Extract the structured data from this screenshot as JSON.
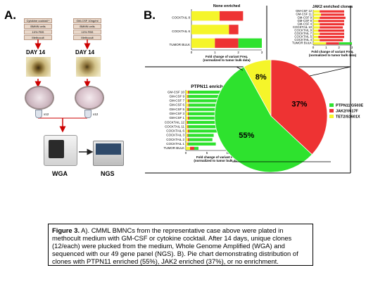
{
  "panel_a": {
    "label": "A.",
    "tube_left_labels": [
      "Cytokine cocktail *",
      "BMMN cells",
      "10% FBS",
      "Methocult"
    ],
    "tube_right_labels": [
      "GM-CSF 10ng/ml",
      "BMMN cells",
      "10% FBS",
      "Methocult"
    ],
    "day_left": "DAY 14",
    "day_right": "DAY 14",
    "x12_left": "x12",
    "x12_right": "x12",
    "wga_label": "WGA",
    "ngs_label": "NGS"
  },
  "panel_b": {
    "label": "B."
  },
  "caption": {
    "bold_part": "Figure 3.",
    "text": " A). CMML BMNCs from the representative case above were plated in methocult medium with GM-CSF or cytokine cocktail. After 14 days, unique clones (12/each) were plucked from the medium, Whole Genome Amplified (WGA) and sequenced with our 49 gene panel (NGS). B). Pie chart demonstrating distribution of clones with PTPN11 enriched (55%), JAK2 enriched (37%), or no enrichment."
  },
  "chart_data": [
    {
      "type": "pie",
      "labels": [
        "PTPN11/G503E",
        "JAK2/V617F",
        "TET2/S1601X"
      ],
      "values": [
        55,
        37,
        8
      ],
      "slice_labels": [
        "55%",
        "37%",
        "8%"
      ],
      "colors": [
        "#2ee22e",
        "#ee3333",
        "#f5f52a"
      ],
      "legend": "right"
    },
    {
      "type": "bar",
      "title": "None enriched",
      "xlabel": "Fold change of variant Freq. (normalized to tumor bulk data)",
      "categories": [
        "COCKTAIL 8",
        "COCKTAIL 6",
        "TUMOR BULK"
      ],
      "series": [
        {
          "name": "TET2/S1601X",
          "values": [
            1.2,
            1.6,
            1.0
          ]
        },
        {
          "name": "JAK2/V617F",
          "values": [
            1.0,
            0.4,
            1.0
          ]
        },
        {
          "name": "PTPN11/G503E",
          "values": [
            0,
            0,
            1.0
          ]
        }
      ],
      "colors": [
        "#f5f52a",
        "#ee3333",
        "#2ee22e"
      ],
      "ticks": [
        "0",
        "1",
        "2",
        "3"
      ],
      "xlim": [
        0,
        3
      ]
    },
    {
      "type": "bar",
      "title": "JAK2 enriched clones",
      "xlabel": "Fold change of variant Freq. (normalized to tumor bulk data)",
      "categories": [
        "GM-CSF 12",
        "GM-CSF 11",
        "GM-CSF 9",
        "GM-CSF 8",
        "GM-CSF 4",
        "COCKTAIL 10",
        "COCKTAIL 9",
        "COCKTAIL 7",
        "COCKTAIL 5",
        "COCKTAIL 4",
        "TUMOR BULK"
      ],
      "series": [
        {
          "name": "TET2/S1601X",
          "values": [
            0.5,
            0.6,
            0.5,
            0.4,
            0.5,
            0.5,
            0.4,
            0.5,
            0.4,
            0.5,
            1.0
          ]
        },
        {
          "name": "JAK2/V617F",
          "values": [
            1.9,
            1.8,
            2.0,
            2.0,
            1.9,
            1.8,
            2.0,
            1.9,
            2.0,
            1.8,
            1.0
          ]
        },
        {
          "name": "PTPN11/G503E",
          "values": [
            0,
            0,
            0,
            0,
            0,
            0,
            0,
            0,
            0,
            0,
            1.0
          ]
        }
      ],
      "colors": [
        "#f5f52a",
        "#ee3333",
        "#2ee22e"
      ],
      "ticks": [
        "0",
        "1",
        "2",
        "3"
      ],
      "xlim": [
        0,
        3
      ]
    },
    {
      "type": "bar",
      "title": "PTPN11 enriched clones",
      "xlabel": "Fold change of variant Freq. (normalized to tumor bulk data)",
      "categories": [
        "GM-CSF 10",
        "GM-CSF 9",
        "GM-CSF 7",
        "GM-CSF 6",
        "GM-CSF 5",
        "GM-CSF 3",
        "GM-CSF 1",
        "COCKTAIL 12",
        "COCKTAIL 11",
        "COCKTAIL 6",
        "COCKTAIL 3",
        "COCKTAIL 2",
        "COCKTAIL 1",
        "TUMOR BULK"
      ],
      "series": [
        {
          "name": "TET2/S1601X",
          "values": [
            0.5,
            0.4,
            0.5,
            0.6,
            0.4,
            0.5,
            0.5,
            0.3,
            0.4,
            0.5,
            0.4,
            0.5,
            0.4,
            1.0
          ]
        },
        {
          "name": "JAK2/V617F",
          "values": [
            0.3,
            0.2,
            0.3,
            0.2,
            0.3,
            0.2,
            0.3,
            0.2,
            0.2,
            0.3,
            0.2,
            0.3,
            0.2,
            1.0
          ]
        },
        {
          "name": "PTPN11/G503E",
          "values": [
            12.5,
            14.0,
            11.0,
            10.5,
            10.0,
            9.5,
            12.0,
            8.5,
            9.0,
            7.0,
            6.0,
            5.5,
            6.5,
            1.0
          ]
        }
      ],
      "colors": [
        "#f5f52a",
        "#ee3333",
        "#2ee22e"
      ],
      "ticks": [
        "0",
        "5",
        "10",
        "15"
      ],
      "xlim": [
        0,
        15
      ]
    }
  ]
}
